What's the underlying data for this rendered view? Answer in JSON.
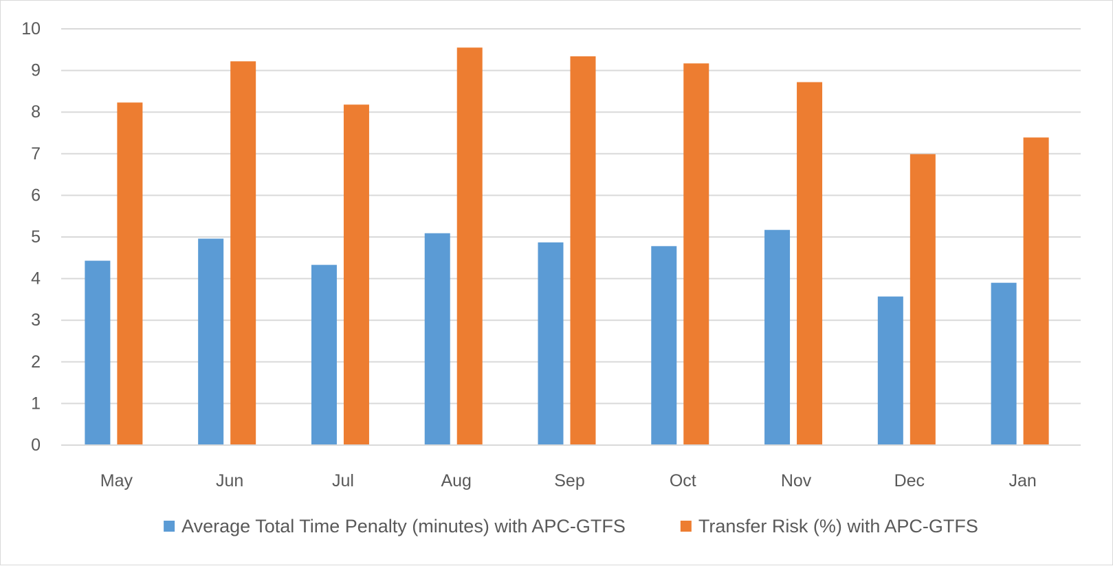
{
  "chart_data": {
    "type": "bar",
    "categories": [
      "May",
      "Jun",
      "Jul",
      "Aug",
      "Sep",
      "Oct",
      "Nov",
      "Dec",
      "Jan"
    ],
    "series": [
      {
        "name": "Average Total Time Penalty (minutes) with APC-GTFS",
        "color": "#5b9bd5",
        "values": [
          4.43,
          4.96,
          4.33,
          5.09,
          4.87,
          4.78,
          5.17,
          3.57,
          3.9
        ]
      },
      {
        "name": "Transfer Risk (%) with APC-GTFS",
        "color": "#ed7d31",
        "values": [
          8.23,
          9.22,
          8.18,
          9.55,
          9.34,
          9.17,
          8.72,
          6.99,
          7.39
        ]
      }
    ],
    "title": "",
    "xlabel": "",
    "ylabel": "",
    "ylim": [
      0,
      10
    ],
    "yticks": [
      0,
      1,
      2,
      3,
      4,
      5,
      6,
      7,
      8,
      9,
      10
    ],
    "grid": true,
    "gridline_color": "#d9d9d9",
    "legend_position": "bottom"
  }
}
